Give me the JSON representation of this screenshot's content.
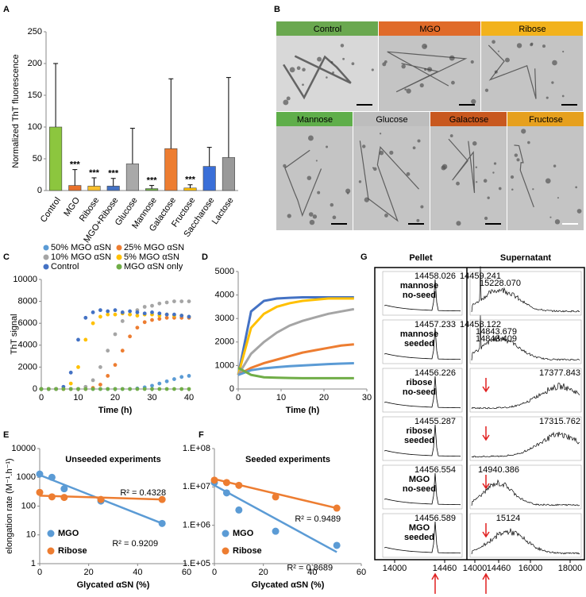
{
  "chart_data": [
    {
      "panel": "A",
      "type": "bar",
      "ylabel": "Normalized ThT fluorescence",
      "categories": [
        "Control",
        "MGO",
        "Ribose",
        "MGO+Ribose",
        "Glucose",
        "Mannose",
        "Galactose",
        "Fructose",
        "Saccharose",
        "Lactose"
      ],
      "values": [
        100,
        8,
        7,
        7,
        42,
        3,
        66,
        4,
        38,
        52
      ],
      "errors": [
        100,
        25,
        13,
        12,
        56,
        5,
        110,
        5,
        30,
        126
      ],
      "colors": [
        "#8cc63e",
        "#e8702a",
        "#f9c02d",
        "#4472c4",
        "#a9a9a9",
        "#70ad47",
        "#ed7d31",
        "#ffc000",
        "#3a6fd8",
        "#999999"
      ],
      "significance": [
        null,
        "***",
        "***",
        "***",
        null,
        "***",
        null,
        "***",
        null,
        null
      ],
      "ylim": [
        0,
        250
      ],
      "yticks": [
        0,
        50,
        100,
        150,
        200,
        250
      ]
    },
    {
      "panel": "C",
      "type": "scatter",
      "xlabel": "Time (h)",
      "ylabel": "ThT signal",
      "x": [
        0,
        2,
        4,
        6,
        8,
        10,
        12,
        14,
        16,
        18,
        20,
        22,
        24,
        26,
        28,
        30,
        32,
        34,
        36,
        38,
        40
      ],
      "series": [
        {
          "name": "50% MGO αSN",
          "color": "#5b9bd5",
          "values": [
            0,
            0,
            0,
            0,
            0,
            0,
            0,
            0,
            0,
            0,
            0,
            0,
            0,
            50,
            150,
            300,
            500,
            700,
            900,
            1100,
            1200
          ]
        },
        {
          "name": "25% MGO αSN",
          "color": "#ed7d31",
          "values": [
            0,
            0,
            0,
            0,
            0,
            0,
            0,
            100,
            400,
            1200,
            2200,
            3500,
            4800,
            5600,
            6100,
            6300,
            6400,
            6500,
            6500,
            6500,
            6500
          ]
        },
        {
          "name": "10% MGO αSN",
          "color": "#a5a5a5",
          "values": [
            0,
            0,
            0,
            0,
            0,
            0,
            200,
            800,
            2000,
            3500,
            5000,
            6200,
            6800,
            7200,
            7500,
            7600,
            7800,
            7900,
            8000,
            8000,
            8000
          ]
        },
        {
          "name": "5% MGO αSN",
          "color": "#ffc000",
          "values": [
            0,
            0,
            0,
            0,
            500,
            2000,
            4500,
            6000,
            6600,
            6800,
            6800,
            6900,
            6800,
            6700,
            6800,
            6800,
            6700,
            6800,
            6700,
            6700,
            6600
          ]
        },
        {
          "name": "Control",
          "color": "#4472c4",
          "values": [
            0,
            0,
            0,
            200,
            1500,
            4500,
            6500,
            7000,
            7200,
            7100,
            7200,
            7000,
            7100,
            7000,
            6900,
            7000,
            6900,
            6800,
            6800,
            6700,
            6600
          ]
        },
        {
          "name": "MGO αSN only",
          "color": "#70ad47",
          "values": [
            0,
            0,
            0,
            0,
            0,
            0,
            0,
            0,
            0,
            0,
            0,
            0,
            0,
            0,
            0,
            0,
            0,
            0,
            0,
            0,
            0
          ]
        }
      ],
      "xlim": [
        0,
        40
      ],
      "xticks": [
        0,
        10,
        20,
        30,
        40
      ],
      "ylim": [
        0,
        10000
      ],
      "yticks": [
        0,
        2000,
        4000,
        6000,
        8000,
        10000
      ]
    },
    {
      "panel": "D",
      "type": "line",
      "xlabel": "Time (h)",
      "x": [
        0,
        3,
        6,
        9,
        12,
        15,
        18,
        21,
        24,
        27
      ],
      "series": [
        {
          "color": "#4472c4",
          "values": [
            600,
            3300,
            3750,
            3850,
            3880,
            3900,
            3900,
            3900,
            3900,
            3900
          ]
        },
        {
          "color": "#ffc000",
          "values": [
            600,
            2600,
            3200,
            3500,
            3650,
            3750,
            3800,
            3850,
            3850,
            3850
          ]
        },
        {
          "color": "#a5a5a5",
          "values": [
            600,
            1500,
            2000,
            2400,
            2700,
            2900,
            3050,
            3200,
            3300,
            3400
          ]
        },
        {
          "color": "#ed7d31",
          "values": [
            600,
            900,
            1100,
            1250,
            1400,
            1550,
            1650,
            1750,
            1850,
            1900
          ]
        },
        {
          "color": "#5b9bd5",
          "values": [
            600,
            800,
            880,
            930,
            970,
            1000,
            1030,
            1060,
            1080,
            1100
          ]
        },
        {
          "color": "#70ad47",
          "values": [
            900,
            600,
            500,
            480,
            470,
            460,
            460,
            460,
            460,
            460
          ]
        }
      ],
      "xlim": [
        0,
        30
      ],
      "xticks": [
        0,
        10,
        20,
        30
      ],
      "ylim": [
        0,
        5000
      ],
      "yticks": [
        0,
        1000,
        2000,
        3000,
        4000,
        5000
      ]
    },
    {
      "panel": "E",
      "type": "scatter",
      "title": "Unseeded experiments",
      "log_y": true,
      "xlabel": "Glycated αSN (%)",
      "ylabel": "elongation rate (M⁻¹.h⁻¹)",
      "series": [
        {
          "name": "MGO",
          "color": "#5b9bd5",
          "x": [
            0,
            5,
            10,
            25,
            50
          ],
          "values": [
            1300,
            1000,
            400,
            150,
            25
          ],
          "fit_x": [
            0,
            50
          ],
          "fit_values": [
            1200,
            25
          ],
          "r2": "R² = 0.9209"
        },
        {
          "name": "Ribose",
          "color": "#ed7d31",
          "x": [
            0,
            5,
            10,
            25,
            50
          ],
          "values": [
            300,
            210,
            200,
            170,
            170
          ],
          "fit_x": [
            0,
            50
          ],
          "fit_values": [
            230,
            170
          ],
          "r2": "R² = 0.4328"
        }
      ],
      "xlim": [
        0,
        60
      ],
      "xticks": [
        0,
        20,
        40,
        60
      ],
      "ylim": [
        1,
        10000
      ],
      "yticks": [
        1,
        10,
        100,
        1000,
        10000
      ]
    },
    {
      "panel": "F",
      "type": "scatter",
      "title": "Seeded experiments",
      "log_y": true,
      "xlabel": "Glycated αSN (%)",
      "series": [
        {
          "name": "MGO",
          "color": "#5b9bd5",
          "x": [
            0,
            5,
            10,
            25,
            50
          ],
          "values": [
            13000000,
            7000000,
            2500000,
            700000,
            300000
          ],
          "fit_x": [
            0,
            50
          ],
          "fit_values": [
            11000000,
            200000
          ],
          "r2": "R² = 0.8689"
        },
        {
          "name": "Ribose",
          "color": "#ed7d31",
          "x": [
            0,
            5,
            10,
            25,
            50
          ],
          "values": [
            15000000,
            13000000,
            11000000,
            5500000,
            2800000
          ],
          "fit_x": [
            0,
            50
          ],
          "fit_values": [
            16000000,
            2800000
          ],
          "r2": "R² = 0.9489"
        }
      ],
      "xlim": [
        0,
        60
      ],
      "xticks": [
        0,
        20,
        40,
        60
      ],
      "ylim": [
        100000,
        100000000
      ],
      "yticks": [
        {
          "value": 100000,
          "label": "1.E+05"
        },
        {
          "value": 1000000,
          "label": "1.E+06"
        },
        {
          "value": 10000000,
          "label": "1.E+07"
        },
        {
          "value": 100000000,
          "label": "1.E+08"
        }
      ]
    }
  ],
  "micrographs": {
    "panel": "B",
    "images": [
      {
        "label": "Control",
        "color": "#6aa84f"
      },
      {
        "label": "MGO",
        "color": "#e06b2a"
      },
      {
        "label": "Ribose",
        "color": "#f2b21c"
      },
      {
        "label": "Mannose",
        "color": "#5fae4a"
      },
      {
        "label": "Glucose",
        "color": "#bdbdbd"
      },
      {
        "label": "Galactose",
        "color": "#c8581f"
      },
      {
        "label": "Fructose",
        "color": "#e6a01e"
      }
    ]
  },
  "spectra": {
    "panel": "G",
    "columns": [
      "Pellet",
      "Supernatant"
    ],
    "rows": [
      {
        "label": [
          "mannose",
          "no-seed"
        ],
        "pellet_peak": "14458.026",
        "supernatant_peaks": [
          "14459.241",
          "15228.070"
        ]
      },
      {
        "label": [
          "mannose",
          "seeded"
        ],
        "pellet_peak": "14457.233",
        "supernatant_peaks": [
          "14458.122",
          "14843.679",
          "14843.409"
        ]
      },
      {
        "label": [
          "ribose",
          "no-seed"
        ],
        "pellet_peak": "14456.226",
        "supernatant_peaks": [
          "17377.843"
        ]
      },
      {
        "label": [
          "ribose",
          "seeded"
        ],
        "pellet_peak": "14455.287",
        "supernatant_peaks": [
          "17315.762"
        ]
      },
      {
        "label": [
          "MGO",
          "no-seed"
        ],
        "pellet_peak": "14456.554",
        "supernatant_peaks": [
          "14940.386"
        ]
      },
      {
        "label": [
          "MGO",
          "seeded"
        ],
        "pellet_peak": "14456.589",
        "supernatant_peaks": [
          "15124"
        ]
      }
    ],
    "pellet_axis": [
      "14000",
      "14460"
    ],
    "supernatant_axis": [
      "14000",
      "14460",
      "16000",
      "18000"
    ]
  }
}
